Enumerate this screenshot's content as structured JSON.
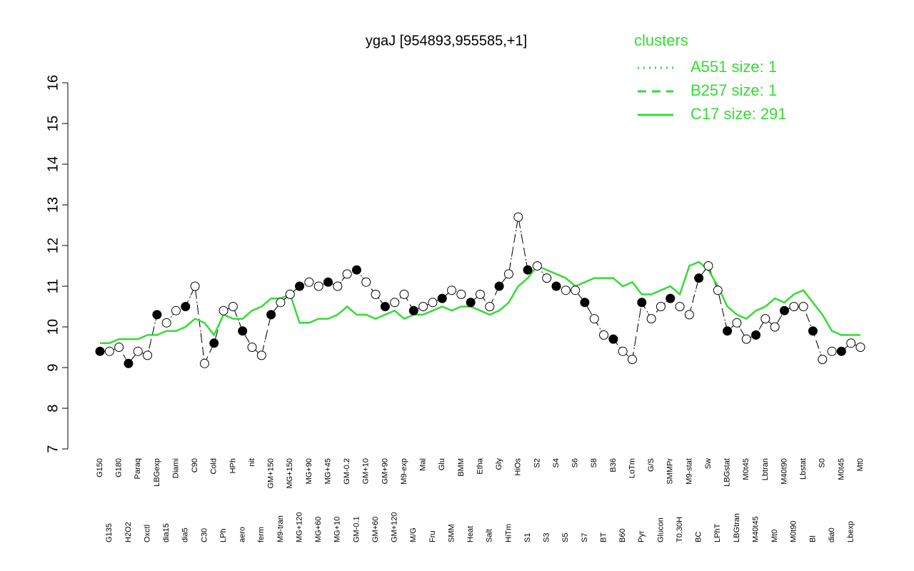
{
  "chart_data": {
    "type": "line",
    "title": "ygaJ [954893,955585,+1]",
    "legend_title": "clusters",
    "legend_position": "top-right",
    "categories": [
      "G150",
      "G135",
      "G180",
      "H2O2",
      "Paraq",
      "Oxctl",
      "LBGexp",
      "dia15",
      "Diami",
      "dia5",
      "C90",
      "C30",
      "Cold",
      "LPh",
      "HPh",
      "aero",
      "nit",
      "ferm",
      "GM+150",
      "M9-tran",
      "MG+150",
      "MG+120",
      "MG+90",
      "MG+60",
      "MG+45",
      "MG+10",
      "GM-0.2",
      "GM-0.1",
      "GM+10",
      "GM+60",
      "GM+90",
      "GM+120",
      "M9-exp",
      "M/G",
      "Mal",
      "Fru",
      "Glu",
      "SMM",
      "BMM",
      "Heat",
      "Etha",
      "Salt",
      "Gly",
      "HiTm",
      "HiOs",
      "S1",
      "S2",
      "S3",
      "S4",
      "S5",
      "S6",
      "S7",
      "S8",
      "BT",
      "B36",
      "B60",
      "LoTm",
      "Pyr",
      "G/S",
      "Glucon",
      "SMMPr",
      "T0.30H",
      "M9-stat",
      "BC",
      "Sw",
      "LPhT",
      "LBGstat",
      "LBGtran",
      "M0t45",
      "M40t45",
      "Lbtran",
      "Mt0",
      "M40t90",
      "M0t90",
      "Lbstat",
      "Bl",
      "S0",
      "dia0",
      "M0t45",
      "Lbexp",
      "Mt0"
    ],
    "values": [
      9.4,
      9.4,
      9.5,
      9.1,
      9.4,
      9.3,
      10.3,
      10.1,
      10.4,
      10.5,
      11.0,
      9.1,
      9.6,
      10.4,
      10.5,
      9.9,
      9.5,
      9.3,
      10.3,
      10.6,
      10.8,
      11.0,
      11.1,
      11.0,
      11.1,
      11.0,
      11.3,
      11.4,
      11.1,
      10.8,
      10.5,
      10.6,
      10.8,
      10.4,
      10.5,
      10.6,
      10.7,
      10.9,
      10.8,
      10.6,
      10.8,
      10.5,
      11.0,
      11.3,
      12.7,
      11.4,
      11.5,
      11.2,
      11.0,
      10.9,
      10.9,
      10.6,
      10.2,
      9.8,
      9.7,
      9.4,
      9.2,
      10.6,
      10.2,
      10.5,
      10.7,
      10.5,
      10.3,
      11.2,
      11.5,
      10.9,
      9.9,
      10.1,
      9.7,
      9.8,
      10.2,
      10.0,
      10.4,
      10.5,
      10.5,
      9.9,
      9.2,
      9.4,
      9.4,
      9.6,
      9.5
    ],
    "series": [
      {
        "name": "A551 size: 1",
        "color": "#33dd33",
        "dash": "dotted",
        "values": [
          9.4,
          9.4,
          9.5,
          9.1,
          9.4,
          9.3,
          10.3,
          10.1,
          10.4,
          10.5,
          11.0,
          9.1,
          9.6,
          10.4,
          10.5,
          9.9,
          9.5,
          9.3,
          10.3,
          10.6,
          10.8,
          11.0,
          11.1,
          11.0,
          11.1,
          11.0,
          11.3,
          11.4,
          11.1,
          10.8,
          10.5,
          10.6,
          10.8,
          10.4,
          10.5,
          10.6,
          10.7,
          10.9,
          10.8,
          10.6,
          10.8,
          10.5,
          11.0,
          11.3,
          12.7,
          11.4,
          11.5,
          11.2,
          11.0,
          10.9,
          10.9,
          10.6,
          10.2,
          9.8,
          9.7,
          9.4,
          9.2,
          10.6,
          10.2,
          10.5,
          10.7,
          10.5,
          10.3,
          11.2,
          11.5,
          10.9,
          9.9,
          10.1,
          9.7,
          9.8,
          10.2,
          10.0,
          10.4,
          10.5,
          10.5,
          9.9,
          9.2,
          9.4,
          9.4,
          9.6,
          9.5
        ]
      },
      {
        "name": "B257 size: 1",
        "color": "#33dd33",
        "dash": "dashed",
        "values": [
          9.4,
          9.4,
          9.5,
          9.1,
          9.4,
          9.3,
          10.3,
          10.1,
          10.4,
          10.5,
          11.0,
          9.1,
          9.6,
          10.4,
          10.5,
          9.9,
          9.5,
          9.3,
          10.3,
          10.6,
          10.8,
          11.0,
          11.1,
          11.0,
          11.1,
          11.0,
          11.3,
          11.4,
          11.1,
          10.8,
          10.5,
          10.6,
          10.8,
          10.4,
          10.5,
          10.6,
          10.7,
          10.9,
          10.8,
          10.6,
          10.8,
          10.5,
          11.0,
          11.3,
          12.7,
          11.4,
          11.5,
          11.2,
          11.0,
          10.9,
          10.9,
          10.6,
          10.2,
          9.8,
          9.7,
          9.4,
          9.2,
          10.6,
          10.2,
          10.5,
          10.7,
          10.5,
          10.3,
          11.2,
          11.5,
          10.9,
          9.9,
          10.1,
          9.7,
          9.8,
          10.2,
          10.0,
          10.4,
          10.5,
          10.5,
          9.9,
          9.2,
          9.4,
          9.4,
          9.6,
          9.5
        ]
      },
      {
        "name": "C17 size: 291",
        "color": "#33dd33",
        "dash": "solid",
        "values": [
          9.6,
          9.6,
          9.7,
          9.7,
          9.7,
          9.8,
          9.8,
          9.9,
          9.9,
          10.0,
          10.2,
          10.1,
          9.8,
          10.3,
          10.2,
          10.2,
          10.4,
          10.5,
          10.7,
          10.7,
          10.8,
          10.1,
          10.1,
          10.2,
          10.2,
          10.3,
          10.5,
          10.3,
          10.3,
          10.2,
          10.3,
          10.4,
          10.2,
          10.3,
          10.3,
          10.4,
          10.5,
          10.4,
          10.5,
          10.5,
          10.4,
          10.3,
          10.4,
          10.6,
          11.0,
          11.2,
          11.5,
          11.4,
          11.3,
          11.2,
          11.0,
          11.1,
          11.2,
          11.2,
          11.2,
          11.0,
          11.1,
          10.8,
          10.8,
          10.9,
          11.0,
          10.8,
          11.5,
          11.6,
          11.4,
          11.0,
          10.5,
          10.3,
          10.2,
          10.4,
          10.5,
          10.7,
          10.6,
          10.8,
          10.9,
          10.6,
          10.3,
          9.9,
          9.8,
          9.8,
          9.8
        ]
      }
    ],
    "ylim": [
      7,
      16
    ],
    "yticks": [
      7,
      8,
      9,
      10,
      11,
      12,
      13,
      14,
      15,
      16
    ]
  }
}
